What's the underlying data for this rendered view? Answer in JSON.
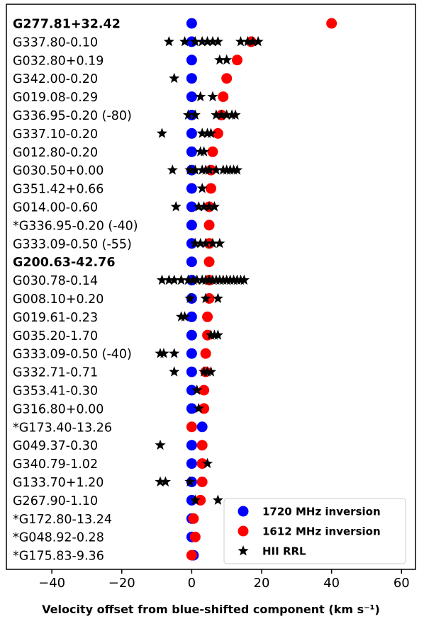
{
  "chart_data": {
    "type": "scatter",
    "xlabel": "Velocity offset from blue-shifted component (km s⁻¹)",
    "xlim": [
      -53,
      64
    ],
    "xticks": [
      -40,
      -20,
      0,
      20,
      40,
      60
    ],
    "xtick_labels": [
      "−40",
      "−20",
      "0",
      "20",
      "40",
      "60"
    ],
    "legend_position": "bottom-right",
    "colors": {
      "blue": "#0000ff",
      "red": "#ff0000",
      "star": "#000000"
    },
    "series": [
      {
        "key": "blue",
        "name": "1720 MHz inversion"
      },
      {
        "key": "red",
        "name": "1612 MHz inversion"
      },
      {
        "key": "star",
        "name": "HII RRL"
      }
    ],
    "sources": [
      {
        "label": "G277.81+32.42",
        "bold": true,
        "blue": 0,
        "red": 40,
        "stars": []
      },
      {
        "label": "G337.80-0.10",
        "bold": false,
        "blue": 0,
        "red": 17,
        "stars": [
          -6.5,
          -2,
          1,
          3,
          4.5,
          6,
          7.5,
          14,
          16,
          17.5,
          19
        ]
      },
      {
        "label": "G032.80+0.19",
        "bold": false,
        "blue": 0,
        "red": 13,
        "stars": [
          8,
          10
        ]
      },
      {
        "label": "G342.00-0.20",
        "bold": false,
        "blue": 0,
        "red": 10,
        "stars": [
          -5
        ]
      },
      {
        "label": "G019.08-0.29",
        "bold": false,
        "blue": 0,
        "red": 9,
        "stars": [
          2.5,
          6
        ]
      },
      {
        "label": "G336.95-0.20 (-80)",
        "bold": false,
        "blue": 0,
        "red": 8.5,
        "stars": [
          -1,
          1,
          7,
          8.5,
          10,
          11.5,
          12.5
        ]
      },
      {
        "label": "G337.10-0.20",
        "bold": false,
        "blue": 0,
        "red": 7.5,
        "stars": [
          -8.5,
          3,
          4.5,
          5.5
        ]
      },
      {
        "label": "G012.80-0.20",
        "bold": false,
        "blue": 0,
        "red": 6,
        "stars": [
          2.5,
          3.5
        ]
      },
      {
        "label": "G030.50+0.00",
        "bold": false,
        "blue": 0,
        "red": 5.5,
        "stars": [
          -5.5,
          -0.5,
          1,
          3,
          4,
          5,
          7,
          9,
          10,
          11,
          12,
          13
        ]
      },
      {
        "label": "G351.42+0.66",
        "bold": false,
        "blue": 0,
        "red": 5.5,
        "stars": [
          3
        ]
      },
      {
        "label": "G014.00-0.60",
        "bold": false,
        "blue": 0,
        "red": 5,
        "stars": [
          -4.5,
          2,
          3.5,
          5,
          6.5
        ]
      },
      {
        "label": "*G336.95-0.20 (-40)",
        "bold": false,
        "blue": 0,
        "red": 5,
        "stars": []
      },
      {
        "label": "G333.09-0.50 (-55)",
        "bold": false,
        "blue": 0,
        "red": 5,
        "stars": [
          1,
          2.5,
          4,
          6,
          8
        ]
      },
      {
        "label": "G200.63-42.76",
        "bold": true,
        "blue": 0,
        "red": 5,
        "stars": []
      },
      {
        "label": "G030.78-0.14",
        "bold": false,
        "blue": 0,
        "red": 5,
        "stars": [
          -8.5,
          -6.5,
          -5,
          -3,
          -1,
          0.5,
          1.5,
          3,
          4,
          5,
          6,
          7,
          8,
          9,
          10,
          11,
          12,
          13,
          14,
          15
        ]
      },
      {
        "label": "G008.10+0.20",
        "bold": false,
        "blue": 0,
        "red": 5,
        "stars": [
          -0.5,
          4,
          7.5
        ]
      },
      {
        "label": "G019.61-0.23",
        "bold": false,
        "blue": 0,
        "red": 4.5,
        "stars": [
          -3,
          -2
        ]
      },
      {
        "label": "G035.20-1.70",
        "bold": false,
        "blue": 0,
        "red": 4.5,
        "stars": [
          5.5,
          6.5,
          7.5
        ]
      },
      {
        "label": "G333.09-0.50 (-40)",
        "bold": false,
        "blue": 0,
        "red": 4,
        "stars": [
          -9,
          -8,
          -5
        ]
      },
      {
        "label": "G332.71-0.71",
        "bold": false,
        "blue": 0,
        "red": 4,
        "stars": [
          -5,
          3.5,
          4.5,
          5.5
        ]
      },
      {
        "label": "G353.41-0.30",
        "bold": false,
        "blue": 0,
        "red": 3.5,
        "stars": [
          1.5
        ]
      },
      {
        "label": "G316.80+0.00",
        "bold": false,
        "blue": 0,
        "red": 3.5,
        "stars": [
          2
        ]
      },
      {
        "label": "*G173.40-13.26",
        "bold": false,
        "blue": 3,
        "red": 0,
        "stars": []
      },
      {
        "label": "G049.37-0.30",
        "bold": false,
        "blue": 0,
        "red": 3,
        "stars": [
          -9
        ]
      },
      {
        "label": "G340.79-1.02",
        "bold": false,
        "blue": 0,
        "red": 3,
        "stars": [
          4.5
        ]
      },
      {
        "label": "G133.70+1.20",
        "bold": false,
        "blue": 0,
        "red": 3,
        "stars": [
          -9,
          -7.5,
          -0.5
        ]
      },
      {
        "label": "G267.90-1.10",
        "bold": false,
        "blue": 0,
        "red": 2.5,
        "stars": [
          1,
          7.5
        ]
      },
      {
        "label": "*G172.80-13.24",
        "bold": false,
        "blue": 0,
        "red": 0.5,
        "stars": []
      },
      {
        "label": "*G048.92-0.28",
        "bold": false,
        "blue": 0,
        "red": 1,
        "stars": []
      },
      {
        "label": "*G175.83-9.36",
        "bold": false,
        "blue": 0.5,
        "red": 0,
        "stars": []
      }
    ]
  }
}
